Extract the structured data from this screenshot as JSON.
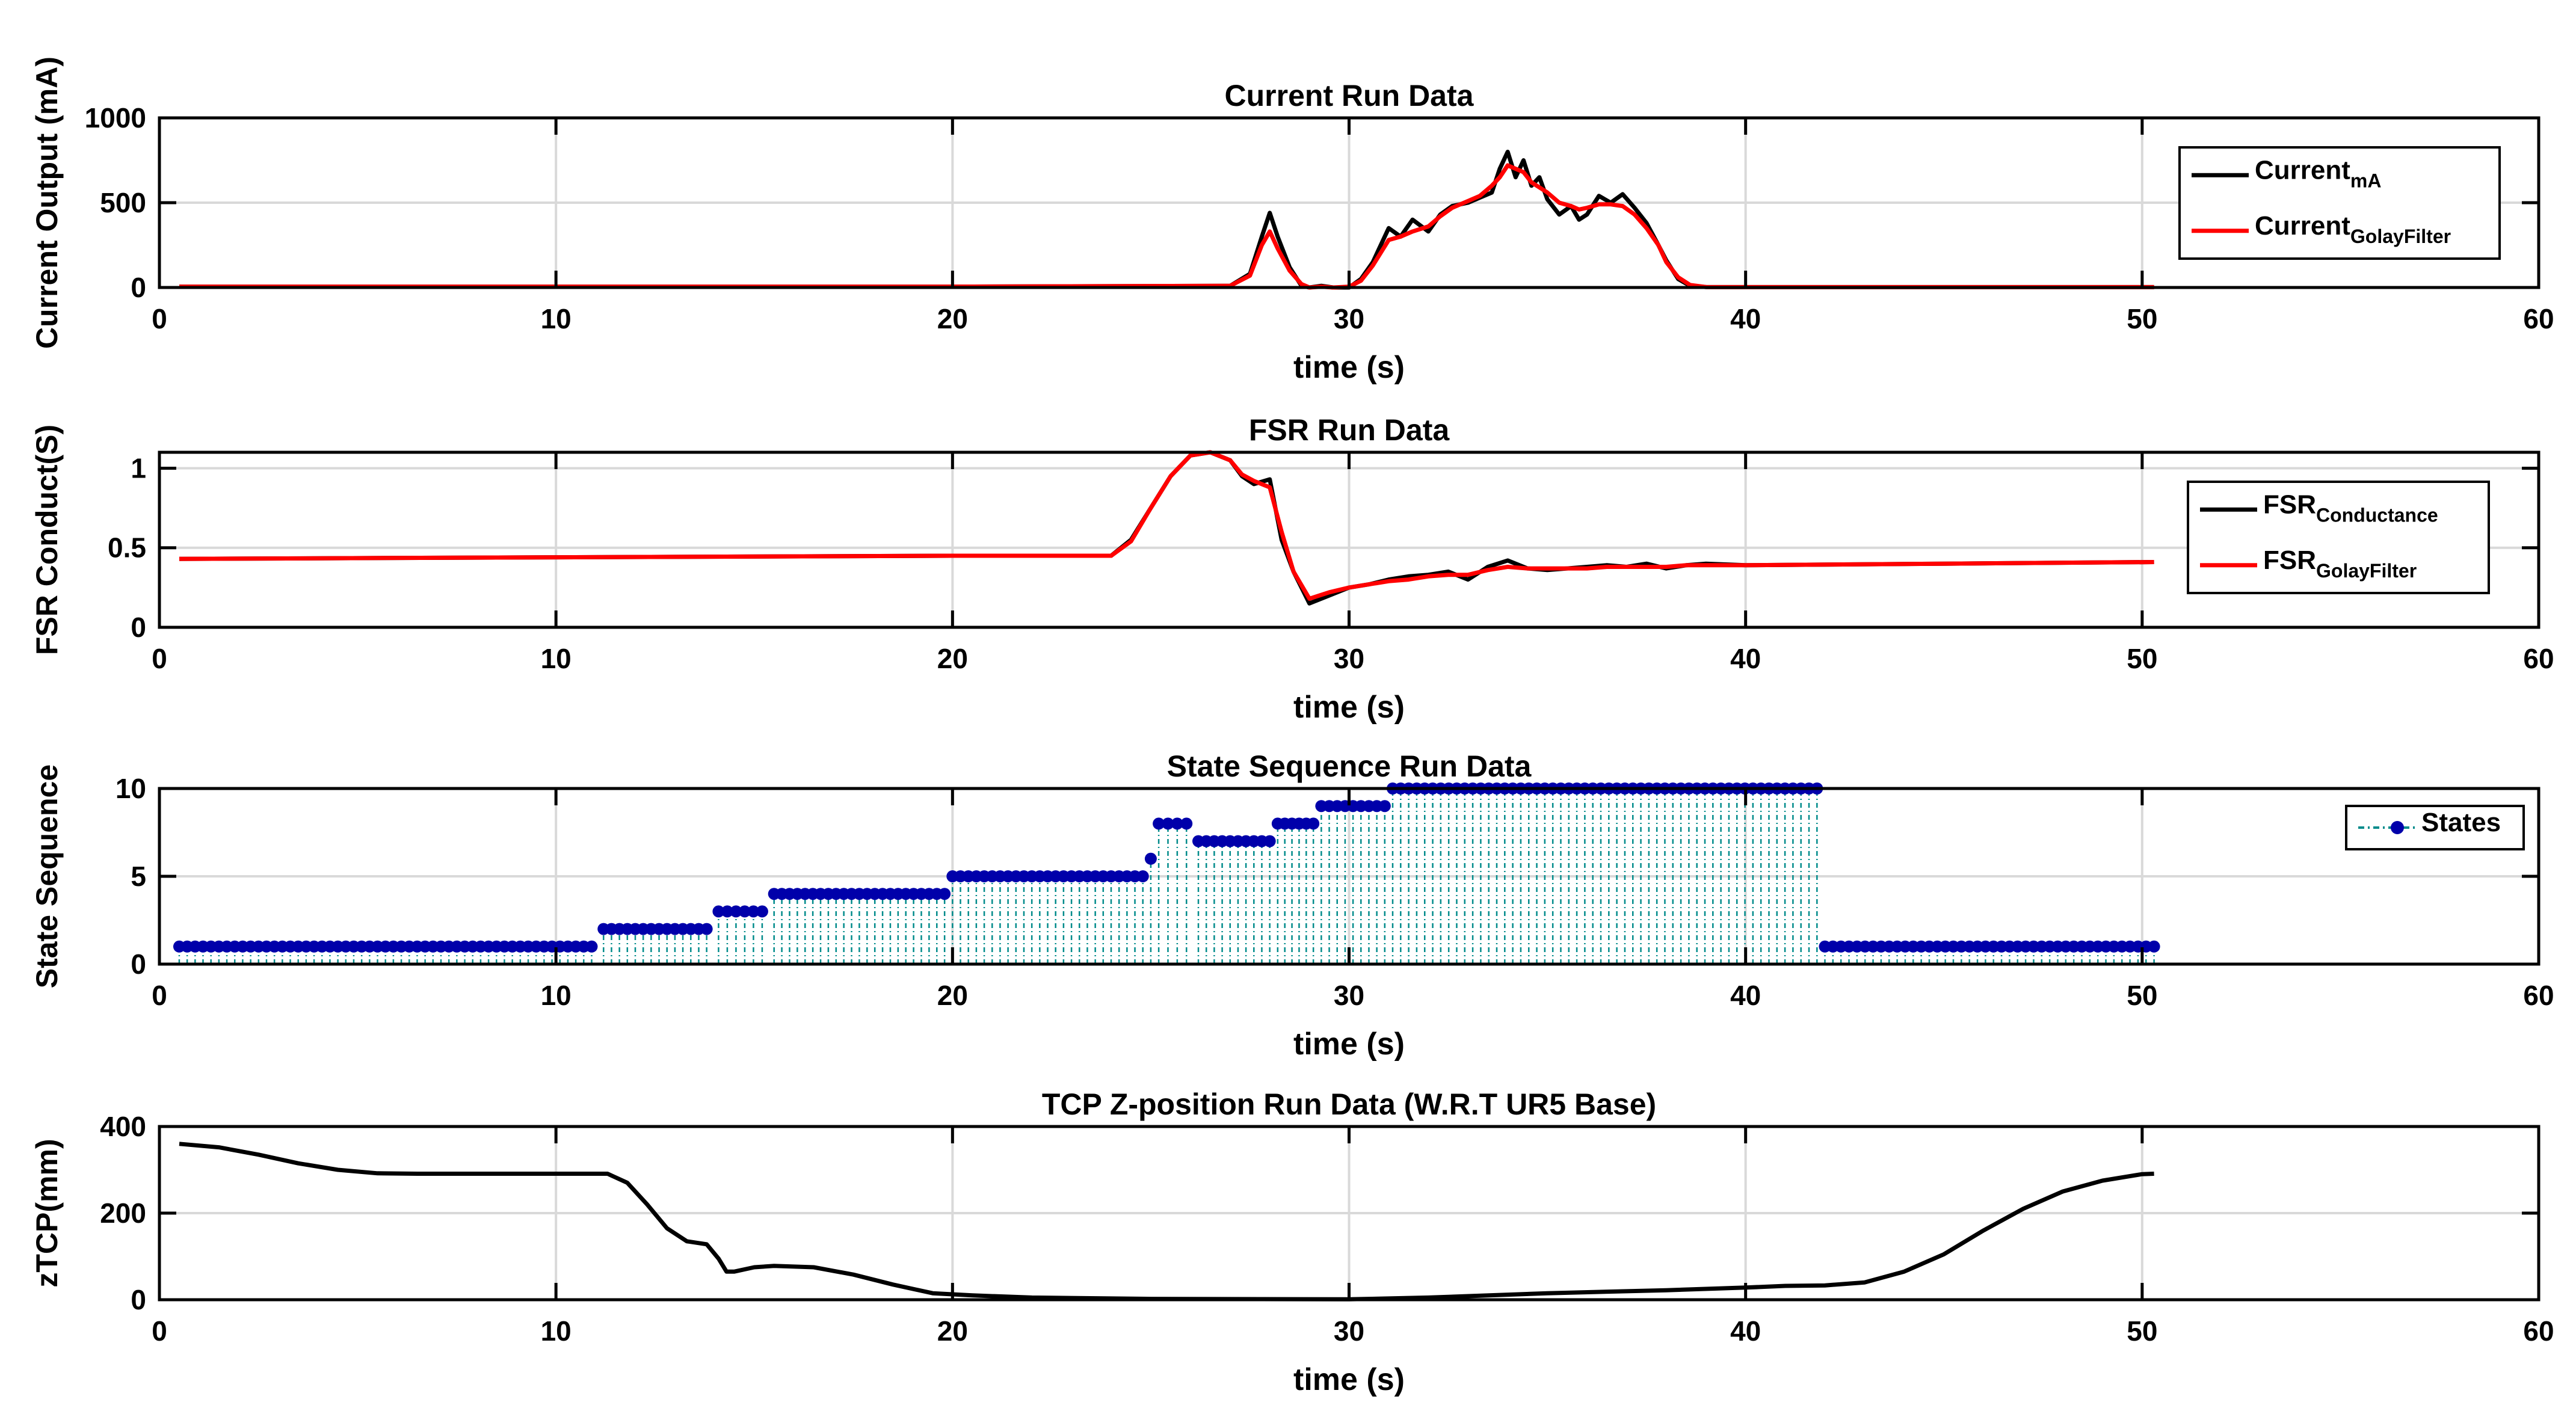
{
  "chart_data": [
    {
      "type": "line",
      "title": "Current Run Data",
      "xlabel": "time (s)",
      "ylabel": "Current Output (mA)",
      "xlim": [
        0,
        60
      ],
      "ylim": [
        0,
        1000
      ],
      "xticks": [
        0,
        10,
        20,
        30,
        40,
        50,
        60
      ],
      "yticks": [
        0,
        500,
        1000
      ],
      "grid": true,
      "legend": "right",
      "series": [
        {
          "name": "Current",
          "subscript": "mA",
          "color": "#000000",
          "x": [
            0.5,
            10,
            20,
            27,
            27.5,
            27.8,
            28,
            28.2,
            28.5,
            28.8,
            29,
            29.3,
            29.6,
            30,
            30.3,
            30.6,
            31,
            31.3,
            31.6,
            32,
            32.3,
            32.6,
            33,
            33.3,
            33.6,
            33.8,
            34,
            34.2,
            34.4,
            34.6,
            34.8,
            35,
            35.3,
            35.6,
            35.8,
            36,
            36.3,
            36.6,
            36.9,
            37.2,
            37.5,
            37.8,
            38,
            38.3,
            38.6,
            39,
            40,
            45,
            50.3
          ],
          "y": [
            5,
            5,
            5,
            10,
            80,
            300,
            440,
            300,
            120,
            10,
            -40,
            10,
            -20,
            0,
            50,
            150,
            350,
            300,
            400,
            330,
            430,
            480,
            500,
            530,
            560,
            700,
            800,
            650,
            750,
            600,
            650,
            520,
            430,
            480,
            400,
            430,
            540,
            500,
            550,
            470,
            380,
            250,
            160,
            50,
            10,
            3,
            2,
            2,
            2
          ]
        },
        {
          "name": "Current",
          "subscript": "GolayFilter",
          "color": "#ff0000",
          "x": [
            0.5,
            10,
            20,
            27,
            27.5,
            27.8,
            28,
            28.2,
            28.5,
            28.8,
            29,
            29.3,
            29.6,
            30,
            30.3,
            30.6,
            31,
            31.3,
            31.6,
            32,
            32.3,
            32.6,
            33,
            33.3,
            33.6,
            33.8,
            34,
            34.2,
            34.4,
            34.6,
            34.8,
            35,
            35.3,
            35.6,
            35.8,
            36,
            36.3,
            36.6,
            36.9,
            37.2,
            37.5,
            37.8,
            38,
            38.3,
            38.6,
            39,
            40,
            45,
            50.3
          ],
          "y": [
            5,
            5,
            5,
            10,
            70,
            250,
            330,
            230,
            100,
            20,
            0,
            5,
            0,
            5,
            40,
            130,
            280,
            300,
            330,
            360,
            420,
            470,
            510,
            540,
            600,
            650,
            720,
            700,
            680,
            620,
            590,
            560,
            500,
            480,
            460,
            470,
            490,
            490,
            480,
            430,
            350,
            250,
            150,
            60,
            15,
            3,
            2,
            2,
            2
          ]
        }
      ]
    },
    {
      "type": "line",
      "title": "FSR Run Data",
      "xlabel": "time (s)",
      "ylabel": "FSR Conduct(S)",
      "xlim": [
        0,
        60
      ],
      "ylim": [
        0,
        1.1
      ],
      "xticks": [
        0,
        10,
        20,
        30,
        40,
        50,
        60
      ],
      "yticks": [
        0,
        0.5,
        1
      ],
      "grid": true,
      "legend": "right",
      "series": [
        {
          "name": "FSR",
          "subscript": "Conductance",
          "color": "#000000",
          "x": [
            0.5,
            10,
            20,
            24,
            24.5,
            25,
            25.5,
            26,
            26.5,
            27,
            27.3,
            27.6,
            28,
            28.3,
            28.6,
            29,
            29.5,
            30,
            30.5,
            31,
            31.5,
            32,
            32.5,
            33,
            33.5,
            34,
            34.5,
            35,
            35.5,
            36,
            36.5,
            37,
            37.5,
            38,
            38.5,
            39,
            40,
            45,
            50.3
          ],
          "y": [
            0.43,
            0.44,
            0.45,
            0.45,
            0.55,
            0.75,
            0.95,
            1.08,
            1.12,
            1.05,
            0.95,
            0.9,
            0.93,
            0.55,
            0.35,
            0.15,
            0.2,
            0.25,
            0.27,
            0.3,
            0.32,
            0.33,
            0.35,
            0.3,
            0.38,
            0.42,
            0.37,
            0.36,
            0.37,
            0.38,
            0.39,
            0.38,
            0.4,
            0.37,
            0.39,
            0.4,
            0.39,
            0.4,
            0.41
          ]
        },
        {
          "name": "FSR",
          "subscript": "GolayFilter",
          "color": "#ff0000",
          "x": [
            0.5,
            10,
            20,
            24,
            24.5,
            25,
            25.5,
            26,
            26.5,
            27,
            27.3,
            27.6,
            28,
            28.3,
            28.6,
            29,
            29.5,
            30,
            30.5,
            31,
            31.5,
            32,
            32.5,
            33,
            33.5,
            34,
            34.5,
            35,
            35.5,
            36,
            36.5,
            37,
            37.5,
            38,
            38.5,
            39,
            40,
            45,
            50.3
          ],
          "y": [
            0.43,
            0.44,
            0.45,
            0.45,
            0.54,
            0.75,
            0.95,
            1.08,
            1.1,
            1.05,
            0.96,
            0.92,
            0.88,
            0.6,
            0.35,
            0.18,
            0.22,
            0.25,
            0.27,
            0.29,
            0.3,
            0.32,
            0.33,
            0.33,
            0.36,
            0.38,
            0.37,
            0.37,
            0.37,
            0.37,
            0.38,
            0.38,
            0.38,
            0.38,
            0.39,
            0.39,
            0.39,
            0.4,
            0.41
          ]
        }
      ]
    },
    {
      "type": "scatter",
      "title": "State Sequence Run Data",
      "xlabel": "time (s)",
      "ylabel": "State Sequence",
      "xlim": [
        0,
        60
      ],
      "ylim": [
        0,
        10
      ],
      "xticks": [
        0,
        10,
        20,
        30,
        40,
        50,
        60
      ],
      "yticks": [
        0,
        5,
        10
      ],
      "grid": true,
      "legend": "top-right",
      "series": [
        {
          "name": "States",
          "color": "#0000aa",
          "stem_color": "#008b8b",
          "segments": [
            {
              "x_start": 0.5,
              "x_end": 10.9,
              "state": 1
            },
            {
              "x_start": 11.2,
              "x_end": 13.8,
              "state": 2
            },
            {
              "x_start": 14.1,
              "x_end": 15.2,
              "state": 3
            },
            {
              "x_start": 15.5,
              "x_end": 19.8,
              "state": 4
            },
            {
              "x_start": 20.0,
              "x_end": 24.8,
              "state": 5
            },
            {
              "x_start": 25.0,
              "x_end": 25.0,
              "state": 6
            },
            {
              "x_start": 25.2,
              "x_end": 25.9,
              "state": 8
            },
            {
              "x_start": 26.2,
              "x_end": 28.0,
              "state": 7
            },
            {
              "x_start": 28.2,
              "x_end": 29.1,
              "state": 8
            },
            {
              "x_start": 29.3,
              "x_end": 30.9,
              "state": 9
            },
            {
              "x_start": 31.1,
              "x_end": 41.8,
              "state": 10
            },
            {
              "x_start": 42.0,
              "x_end": 50.3,
              "state": 1
            }
          ]
        }
      ]
    },
    {
      "type": "line",
      "title": "TCP Z-position Run Data (W.R.T UR5 Base)",
      "xlabel": "time (s)",
      "ylabel": "zTCP(mm)",
      "xlim": [
        0,
        60
      ],
      "ylim": [
        0,
        400
      ],
      "xticks": [
        0,
        10,
        20,
        30,
        40,
        50,
        60
      ],
      "yticks": [
        0,
        200,
        400
      ],
      "grid": true,
      "series": [
        {
          "name": "zTCP",
          "color": "#000000",
          "x": [
            0.5,
            1.5,
            2.5,
            3.5,
            4.5,
            5.5,
            6.5,
            8,
            10,
            11.3,
            11.8,
            12.3,
            12.8,
            13.3,
            13.8,
            14.1,
            14.3,
            14.5,
            15,
            15.5,
            16.5,
            17.5,
            18.5,
            19.5,
            20.5,
            22,
            25,
            30,
            32,
            35,
            38,
            40,
            41,
            42,
            43,
            44,
            45,
            46,
            47,
            48,
            49,
            50,
            50.3
          ],
          "y": [
            360,
            352,
            335,
            315,
            300,
            292,
            291,
            291,
            291,
            291,
            270,
            220,
            165,
            135,
            128,
            95,
            65,
            65,
            75,
            78,
            75,
            58,
            35,
            15,
            10,
            5,
            2,
            1,
            5,
            15,
            22,
            28,
            32,
            33,
            40,
            65,
            105,
            160,
            210,
            250,
            275,
            290,
            291
          ]
        }
      ]
    }
  ]
}
